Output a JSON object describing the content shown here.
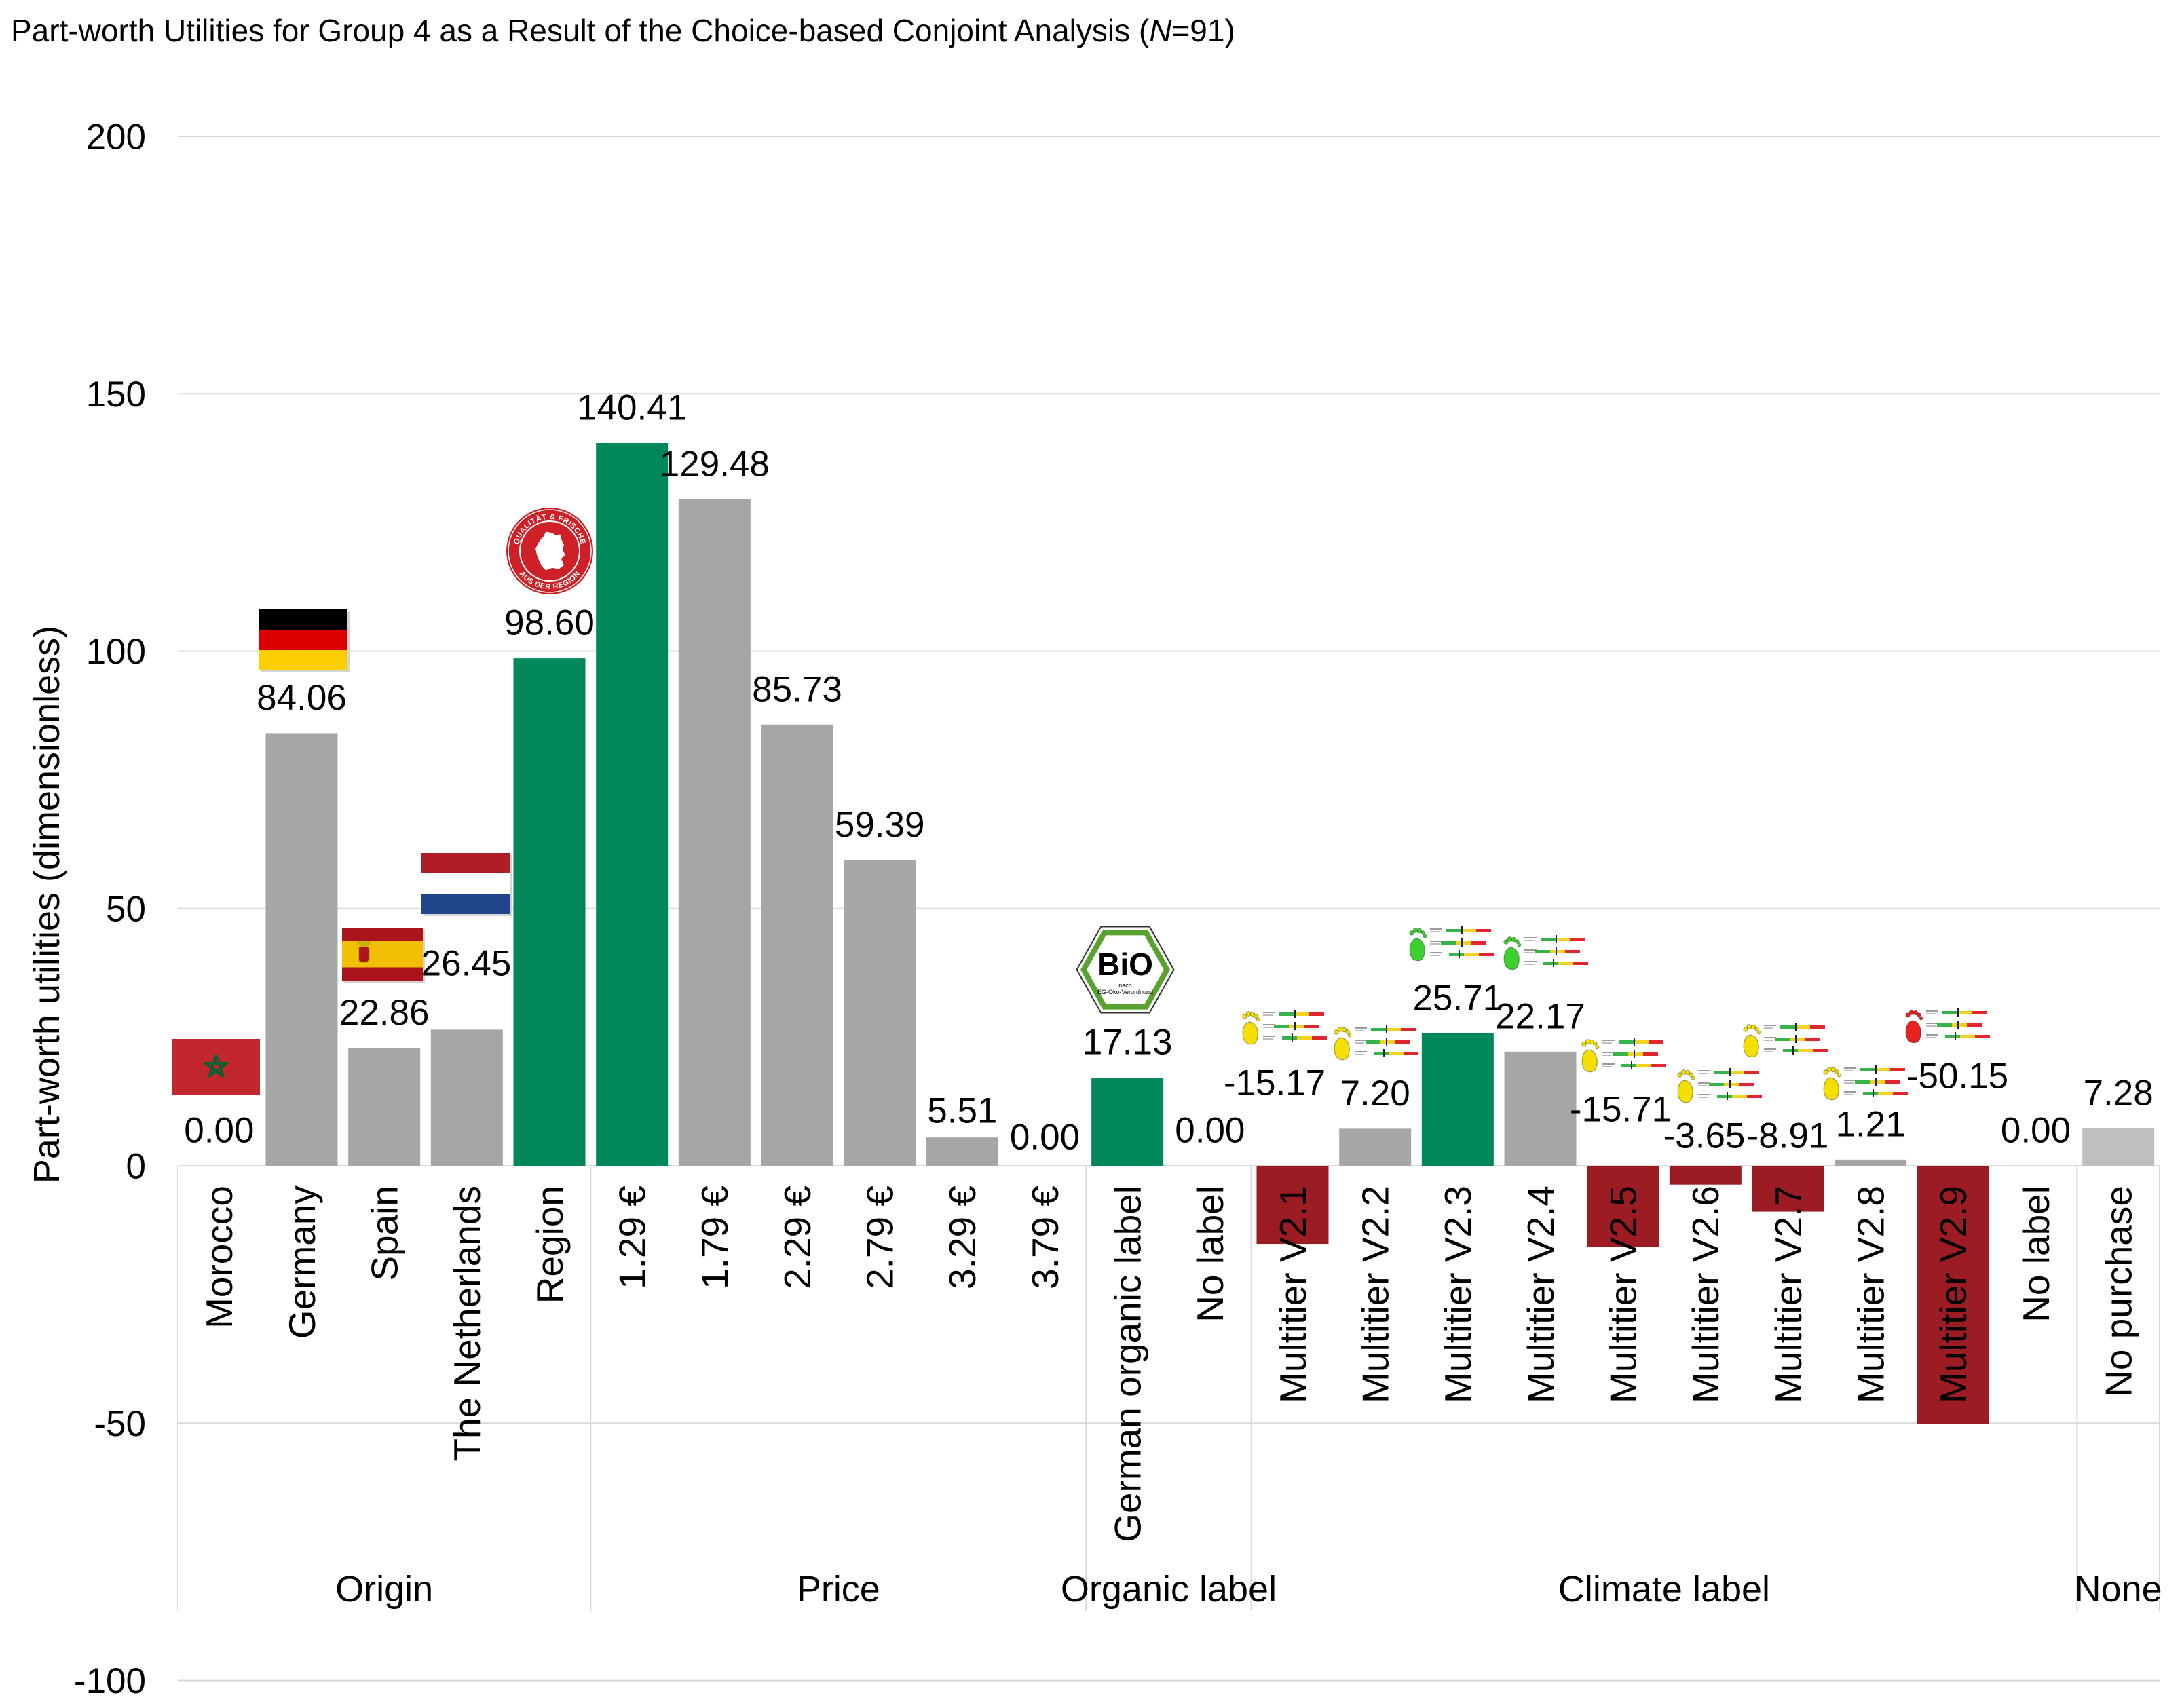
{
  "chart_data": {
    "type": "bar",
    "title": {
      "prefix": "Part-worth Utilities for Group 4 as a Result of the Choice-based Conjoint Analysis (",
      "italic": "N",
      "suffix": "=91)"
    },
    "xlabel": "",
    "ylabel": "Part-worth utilities (dimensionless)",
    "ylim": [
      -100,
      200
    ],
    "ytick_labels": [
      "200",
      "150",
      "100",
      "50",
      "0",
      "-50",
      "-100"
    ],
    "grid": true,
    "legend": "none",
    "categories": [
      "Morocco",
      "Germany",
      "Spain",
      "The Netherlands",
      "Region",
      "1.29 €",
      "1.79 €",
      "2.29 €",
      "2.79 €",
      "3.29 €",
      "3.79 €",
      "German organic label",
      "No label",
      "Multitier V2.1",
      "Multitier V2.2",
      "Multitier V2.3",
      "Multitier V2.4",
      "Multitier V2.5",
      "Multitier V2.6",
      "Multitier V2.7",
      "Multitier V2.8",
      "Multitier V2.9",
      "No label",
      "No purchase"
    ],
    "values": [
      0.0,
      84.06,
      22.86,
      26.45,
      98.6,
      140.41,
      129.48,
      85.73,
      59.39,
      5.51,
      0.0,
      17.13,
      0.0,
      -15.17,
      7.2,
      25.71,
      22.17,
      -15.71,
      -3.65,
      -8.91,
      1.21,
      -50.15,
      0.0,
      7.28
    ],
    "data_labels": [
      "0.00",
      "84.06",
      "22.86",
      "26.45",
      "98.60",
      "140.41",
      "129.48",
      "85.73",
      "59.39",
      "5.51",
      "0.00",
      "17.13",
      "0.00",
      "-15.17",
      "7.20",
      "25.71",
      "22.17",
      "-15.71",
      "-3.65",
      "-8.91",
      "1.21",
      "-50.15",
      "0.00",
      "7.28"
    ],
    "bar_colors": [
      "gray",
      "gray",
      "gray",
      "gray",
      "green",
      "green",
      "gray",
      "gray",
      "gray",
      "gray",
      "gray",
      "green",
      "gray",
      "red",
      "gray",
      "green",
      "gray",
      "red",
      "red",
      "red",
      "gray",
      "red",
      "gray",
      "light_gray"
    ],
    "colors": {
      "gray": "#A6A6A6",
      "green": "#00875A",
      "red": "#9C1C24",
      "light_gray": "#BFBFBF",
      "grid": "#D9D9D9"
    },
    "groups": [
      {
        "label": "Origin",
        "start": 0,
        "count": 5
      },
      {
        "label": "Price",
        "start": 5,
        "count": 6
      },
      {
        "label": "Organic label",
        "start": 11,
        "count": 2
      },
      {
        "label": "Climate label",
        "start": 13,
        "count": 10
      },
      {
        "label": "None",
        "start": 23,
        "count": 1
      }
    ],
    "bar_icons": {
      "0": "morocco-flag-icon",
      "1": "germany-flag-icon",
      "2": "spain-flag-icon",
      "3": "netherlands-flag-icon",
      "4": "regional-seal-icon",
      "11": "bio-label-icon",
      "13": "footprint-yellow-icon",
      "14": "footprint-yellow-icon",
      "15": "footprint-green-icon",
      "16": "footprint-green-icon",
      "17": "footprint-yellow-icon",
      "18": "footprint-yellow-icon",
      "19": "footprint-yellow-icon",
      "20": "footprint-yellow-icon",
      "21": "footprint-red-icon"
    }
  },
  "logos": {
    "regional_seal_top": "QUALITÄT & FRISCHE",
    "regional_seal_bottom": "AUS DER REGION",
    "bio_main": "BiO",
    "bio_sub_1": "nach",
    "bio_sub_2": "EG-Öko-Verordnung"
  }
}
